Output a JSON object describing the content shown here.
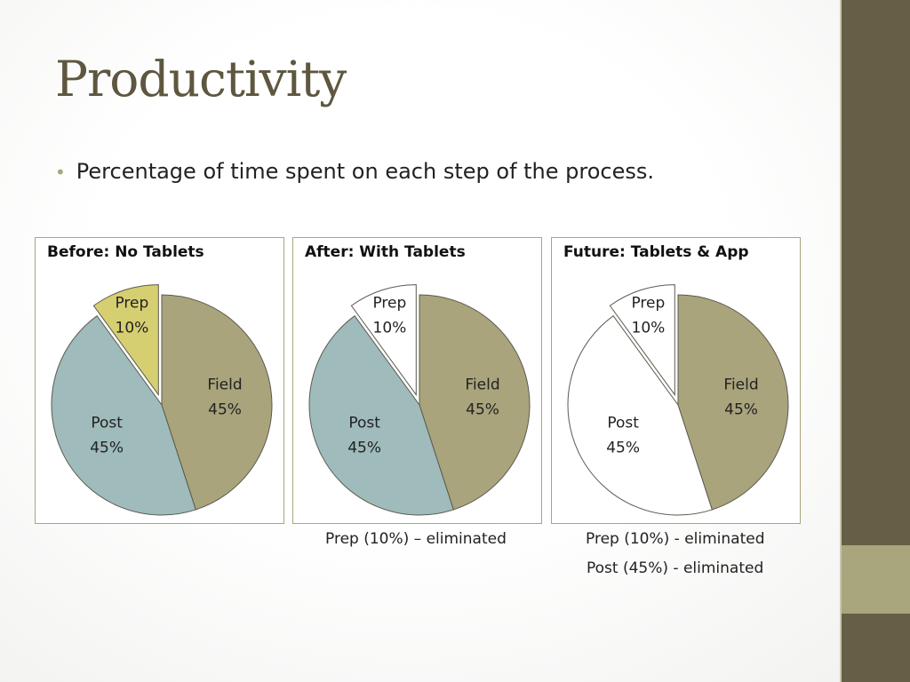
{
  "slide": {
    "title": "Productivity",
    "bullet": "Percentage of time spent on each step of the process."
  },
  "colors": {
    "sidebar": "#675e47",
    "sidebar_accent": "#a9a57c",
    "panel_border": "#a9a57c",
    "title": "#5e573f",
    "slice_outline": "#5b5a4e"
  },
  "chart_data": [
    {
      "type": "pie",
      "title": "Before: No Tablets",
      "categories": [
        "Field",
        "Post",
        "Prep"
      ],
      "values": [
        45,
        45,
        10
      ],
      "colors": [
        "#a9a47c",
        "#9fbbbb",
        "#d6cf72"
      ],
      "labels": [
        "45%",
        "45%",
        "10%"
      ]
    },
    {
      "type": "pie",
      "title": "After: With Tablets",
      "categories": [
        "Field",
        "Post",
        "Prep"
      ],
      "values": [
        45,
        45,
        10
      ],
      "colors": [
        "#a9a47c",
        "#9fbbbb",
        "#ffffff"
      ],
      "labels": [
        "45%",
        "45%",
        "10%"
      ]
    },
    {
      "type": "pie",
      "title": "Future: Tablets & App",
      "categories": [
        "Field",
        "Post",
        "Prep"
      ],
      "values": [
        45,
        45,
        10
      ],
      "colors": [
        "#a9a47c",
        "#ffffff",
        "#ffffff"
      ],
      "labels": [
        "45%",
        "45%",
        "10%"
      ]
    }
  ],
  "notes": {
    "after": "Prep (10%) – eliminated",
    "future_prep": "Prep (10%) - eliminated",
    "future_post": "Post (45%) - eliminated"
  }
}
